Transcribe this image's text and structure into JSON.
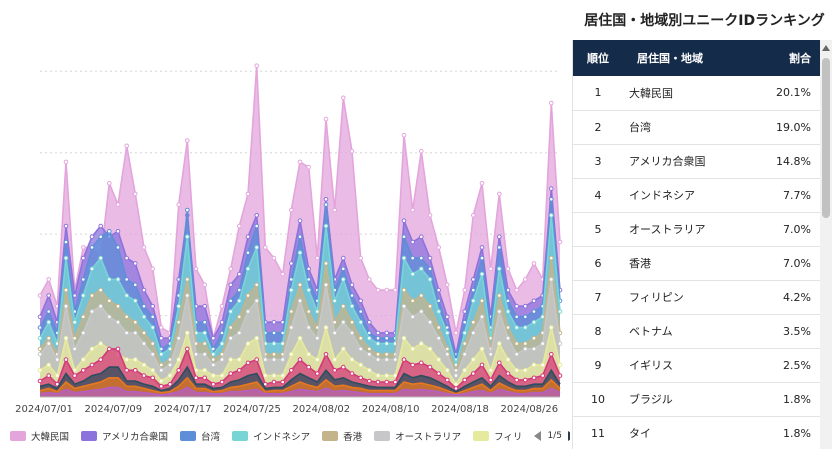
{
  "chart_data": {
    "type": "area",
    "stacked": false,
    "grid": "horizontal-dotted",
    "x_tick_labels": [
      "2024/07/01",
      "2024/07/09",
      "2024/07/17",
      "2024/07/25",
      "2024/08/02",
      "2024/08/10",
      "2024/08/18",
      "2024/08/26"
    ],
    "x_tick_index": [
      0,
      8,
      16,
      24,
      32,
      40,
      48,
      56
    ],
    "ylim": [
      0,
      320
    ],
    "series": [
      {
        "name": "大韓民国",
        "color": "#e3a5dc",
        "values": [
          95,
          110,
          85,
          220,
          100,
          140,
          140,
          130,
          200,
          180,
          235,
          190,
          140,
          120,
          65,
          60,
          180,
          240,
          120,
          105,
          55,
          85,
          120,
          160,
          190,
          310,
          140,
          130,
          115,
          175,
          220,
          215,
          130,
          260,
          175,
          280,
          230,
          130,
          110,
          100,
          100,
          100,
          245,
          175,
          230,
          170,
          140,
          105,
          60,
          100,
          170,
          200,
          120,
          190,
          120,
          100,
          110,
          125,
          110,
          275,
          145
        ]
      },
      {
        "name": "アメリカ合衆国",
        "color": "#8c73dc",
        "values": [
          75,
          95,
          70,
          160,
          95,
          130,
          150,
          160,
          150,
          155,
          130,
          125,
          100,
          85,
          55,
          55,
          110,
          170,
          85,
          85,
          55,
          70,
          105,
          115,
          150,
          170,
          70,
          70,
          70,
          125,
          165,
          120,
          100,
          185,
          110,
          130,
          105,
          90,
          70,
          60,
          60,
          60,
          165,
          145,
          150,
          130,
          100,
          75,
          40,
          80,
          110,
          140,
          75,
          150,
          100,
          85,
          85,
          90,
          95,
          195,
          100
        ]
      },
      {
        "name": "台湾",
        "color": "#5d8fd8",
        "values": [
          65,
          80,
          60,
          145,
          80,
          110,
          140,
          150,
          155,
          140,
          110,
          105,
          85,
          75,
          45,
          50,
          95,
          175,
          70,
          70,
          45,
          60,
          90,
          100,
          135,
          160,
          60,
          60,
          60,
          110,
          150,
          110,
          90,
          180,
          100,
          120,
          95,
          80,
          60,
          55,
          55,
          55,
          150,
          130,
          130,
          120,
          90,
          65,
          35,
          70,
          100,
          130,
          65,
          140,
          90,
          75,
          75,
          80,
          85,
          185,
          90
        ]
      },
      {
        "name": "インドネシア",
        "color": "#77d5d6",
        "values": [
          55,
          70,
          50,
          130,
          70,
          95,
          120,
          130,
          110,
          110,
          95,
          90,
          75,
          65,
          40,
          45,
          85,
          150,
          60,
          60,
          40,
          50,
          80,
          90,
          120,
          140,
          50,
          50,
          50,
          100,
          135,
          100,
          80,
          160,
          90,
          110,
          85,
          70,
          55,
          50,
          50,
          50,
          130,
          115,
          120,
          110,
          80,
          60,
          30,
          60,
          90,
          115,
          55,
          120,
          80,
          65,
          65,
          70,
          75,
          170,
          80
        ]
      },
      {
        "name": "香港",
        "color": "#c4b48c",
        "values": [
          45,
          55,
          40,
          100,
          55,
          75,
          95,
          100,
          90,
          85,
          75,
          70,
          60,
          50,
          30,
          35,
          70,
          110,
          50,
          50,
          35,
          40,
          65,
          75,
          95,
          105,
          40,
          40,
          40,
          80,
          105,
          80,
          65,
          125,
          70,
          85,
          70,
          55,
          45,
          40,
          40,
          40,
          100,
          90,
          95,
          85,
          65,
          45,
          25,
          50,
          70,
          90,
          45,
          95,
          65,
          50,
          50,
          55,
          60,
          130,
          60
        ]
      },
      {
        "name": "オーストラリア",
        "color": "#c7c7c9",
        "values": [
          40,
          50,
          35,
          85,
          45,
          60,
          80,
          85,
          75,
          70,
          60,
          60,
          50,
          40,
          25,
          30,
          55,
          95,
          40,
          40,
          30,
          35,
          55,
          60,
          80,
          90,
          35,
          35,
          35,
          65,
          90,
          65,
          55,
          105,
          60,
          70,
          60,
          45,
          40,
          35,
          35,
          35,
          85,
          75,
          80,
          70,
          55,
          40,
          20,
          40,
          60,
          75,
          40,
          80,
          55,
          40,
          45,
          45,
          50,
          110,
          50
        ]
      },
      {
        "name": "フィリピン",
        "color": "#e6ea9d",
        "values": [
          25,
          30,
          20,
          55,
          25,
          35,
          45,
          50,
          45,
          40,
          35,
          35,
          30,
          25,
          15,
          20,
          35,
          60,
          25,
          25,
          20,
          20,
          35,
          35,
          50,
          55,
          20,
          20,
          20,
          40,
          55,
          40,
          35,
          65,
          35,
          45,
          35,
          30,
          25,
          20,
          20,
          20,
          55,
          45,
          50,
          45,
          35,
          25,
          12,
          25,
          35,
          45,
          25,
          50,
          35,
          25,
          25,
          30,
          30,
          65,
          30
        ]
      },
      {
        "name": "",
        "color": "#d4397a",
        "values": [
          15,
          20,
          12,
          35,
          20,
          25,
          30,
          35,
          45,
          45,
          25,
          25,
          20,
          18,
          10,
          12,
          25,
          45,
          18,
          18,
          12,
          14,
          22,
          25,
          32,
          35,
          12,
          14,
          14,
          25,
          35,
          28,
          22,
          40,
          25,
          28,
          22,
          18,
          15,
          14,
          14,
          14,
          35,
          30,
          32,
          28,
          22,
          16,
          8,
          16,
          22,
          30,
          16,
          32,
          22,
          16,
          16,
          18,
          20,
          40,
          20
        ]
      },
      {
        "name": "",
        "color": "#2e4e5e",
        "values": [
          10,
          12,
          8,
          22,
          12,
          15,
          20,
          22,
          28,
          28,
          15,
          15,
          12,
          10,
          6,
          8,
          16,
          28,
          12,
          12,
          8,
          9,
          14,
          16,
          20,
          22,
          8,
          9,
          9,
          16,
          22,
          18,
          14,
          25,
          16,
          18,
          14,
          12,
          10,
          9,
          9,
          9,
          22,
          18,
          20,
          18,
          14,
          10,
          5,
          10,
          14,
          18,
          10,
          20,
          14,
          10,
          10,
          12,
          12,
          25,
          12
        ]
      },
      {
        "name": "",
        "color": "#e77820",
        "values": [
          6,
          8,
          5,
          14,
          8,
          10,
          12,
          14,
          18,
          18,
          10,
          10,
          8,
          6,
          4,
          5,
          10,
          18,
          8,
          8,
          5,
          6,
          9,
          10,
          12,
          14,
          5,
          6,
          6,
          10,
          14,
          11,
          9,
          16,
          10,
          11,
          9,
          8,
          6,
          6,
          6,
          6,
          14,
          12,
          13,
          11,
          9,
          6,
          3,
          6,
          9,
          12,
          6,
          13,
          9,
          6,
          6,
          8,
          8,
          16,
          8
        ]
      },
      {
        "name": "",
        "color": "#b55fc0",
        "values": [
          3,
          4,
          3,
          7,
          4,
          5,
          6,
          7,
          9,
          9,
          5,
          5,
          4,
          3,
          2,
          3,
          5,
          9,
          4,
          4,
          3,
          3,
          5,
          5,
          6,
          7,
          3,
          3,
          3,
          5,
          7,
          6,
          5,
          8,
          5,
          6,
          5,
          4,
          3,
          3,
          3,
          3,
          7,
          6,
          7,
          6,
          5,
          3,
          2,
          3,
          5,
          6,
          3,
          7,
          5,
          3,
          3,
          4,
          4,
          8,
          4
        ]
      }
    ]
  },
  "legend": {
    "items": [
      {
        "label": "大韓民国",
        "color": "#e3a5dc"
      },
      {
        "label": "アメリカ合衆国",
        "color": "#8c73dc"
      },
      {
        "label": "台湾",
        "color": "#5d8fd8"
      },
      {
        "label": "インドネシア",
        "color": "#77d5d6"
      },
      {
        "label": "香港",
        "color": "#c4b48c"
      },
      {
        "label": "オーストラリア",
        "color": "#c7c7c9"
      },
      {
        "label": "フィリ",
        "color": "#e6ea9d"
      }
    ],
    "page": "1/5"
  },
  "ranking": {
    "title": "居住国・地域別ユニークIDランキング",
    "header": {
      "rank": "順位",
      "region": "居住国・地域",
      "share": "割合"
    },
    "rows": [
      {
        "rank": "1",
        "region": "大韓民国",
        "share": "20.1%"
      },
      {
        "rank": "2",
        "region": "台湾",
        "share": "19.0%"
      },
      {
        "rank": "3",
        "region": "アメリカ合衆国",
        "share": "14.8%"
      },
      {
        "rank": "4",
        "region": "インドネシア",
        "share": "7.7%"
      },
      {
        "rank": "5",
        "region": "オーストラリア",
        "share": "7.0%"
      },
      {
        "rank": "6",
        "region": "香港",
        "share": "7.0%"
      },
      {
        "rank": "7",
        "region": "フィリピン",
        "share": "4.2%"
      },
      {
        "rank": "8",
        "region": "ベトナム",
        "share": "3.5%"
      },
      {
        "rank": "9",
        "region": "イギリス",
        "share": "2.5%"
      },
      {
        "rank": "10",
        "region": "ブラジル",
        "share": "1.8%"
      },
      {
        "rank": "11",
        "region": "タイ",
        "share": "1.8%"
      }
    ]
  }
}
